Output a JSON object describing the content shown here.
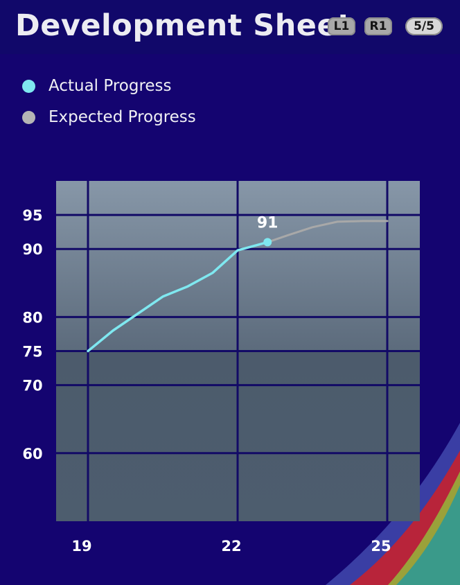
{
  "header": {
    "title": "Development Sheet",
    "l1_label": "L1",
    "r1_label": "R1",
    "page_counter": "5/5"
  },
  "legend": [
    {
      "label": "Actual Progress",
      "color": "#7fe8f0"
    },
    {
      "label": "Expected Progress",
      "color": "#b5b5b5"
    }
  ],
  "colors": {
    "background": "#140470",
    "grid": "#120a66",
    "actual_line": "#7fe8f0",
    "expected_line": "#a8a8a8"
  },
  "chart_data": {
    "type": "line",
    "xlabel": "",
    "ylabel": "",
    "xlim": [
      19,
      25
    ],
    "ylim": [
      50,
      100
    ],
    "x_ticks": [
      19,
      22,
      25
    ],
    "y_ticks": [
      60,
      70,
      75,
      80,
      90,
      95
    ],
    "series": [
      {
        "name": "Actual Progress",
        "points": [
          [
            19,
            75
          ],
          [
            19.5,
            78
          ],
          [
            20,
            80.5
          ],
          [
            20.5,
            83
          ],
          [
            21,
            84.5
          ],
          [
            21.5,
            86.5
          ],
          [
            22,
            89.8
          ],
          [
            22.6,
            91
          ]
        ],
        "end_label": "91"
      },
      {
        "name": "Expected Progress",
        "points": [
          [
            22.6,
            91
          ],
          [
            23,
            92
          ],
          [
            23.5,
            93.2
          ],
          [
            24,
            94
          ],
          [
            24.5,
            94.1
          ],
          [
            25,
            94.1
          ]
        ]
      }
    ],
    "grid": true
  }
}
